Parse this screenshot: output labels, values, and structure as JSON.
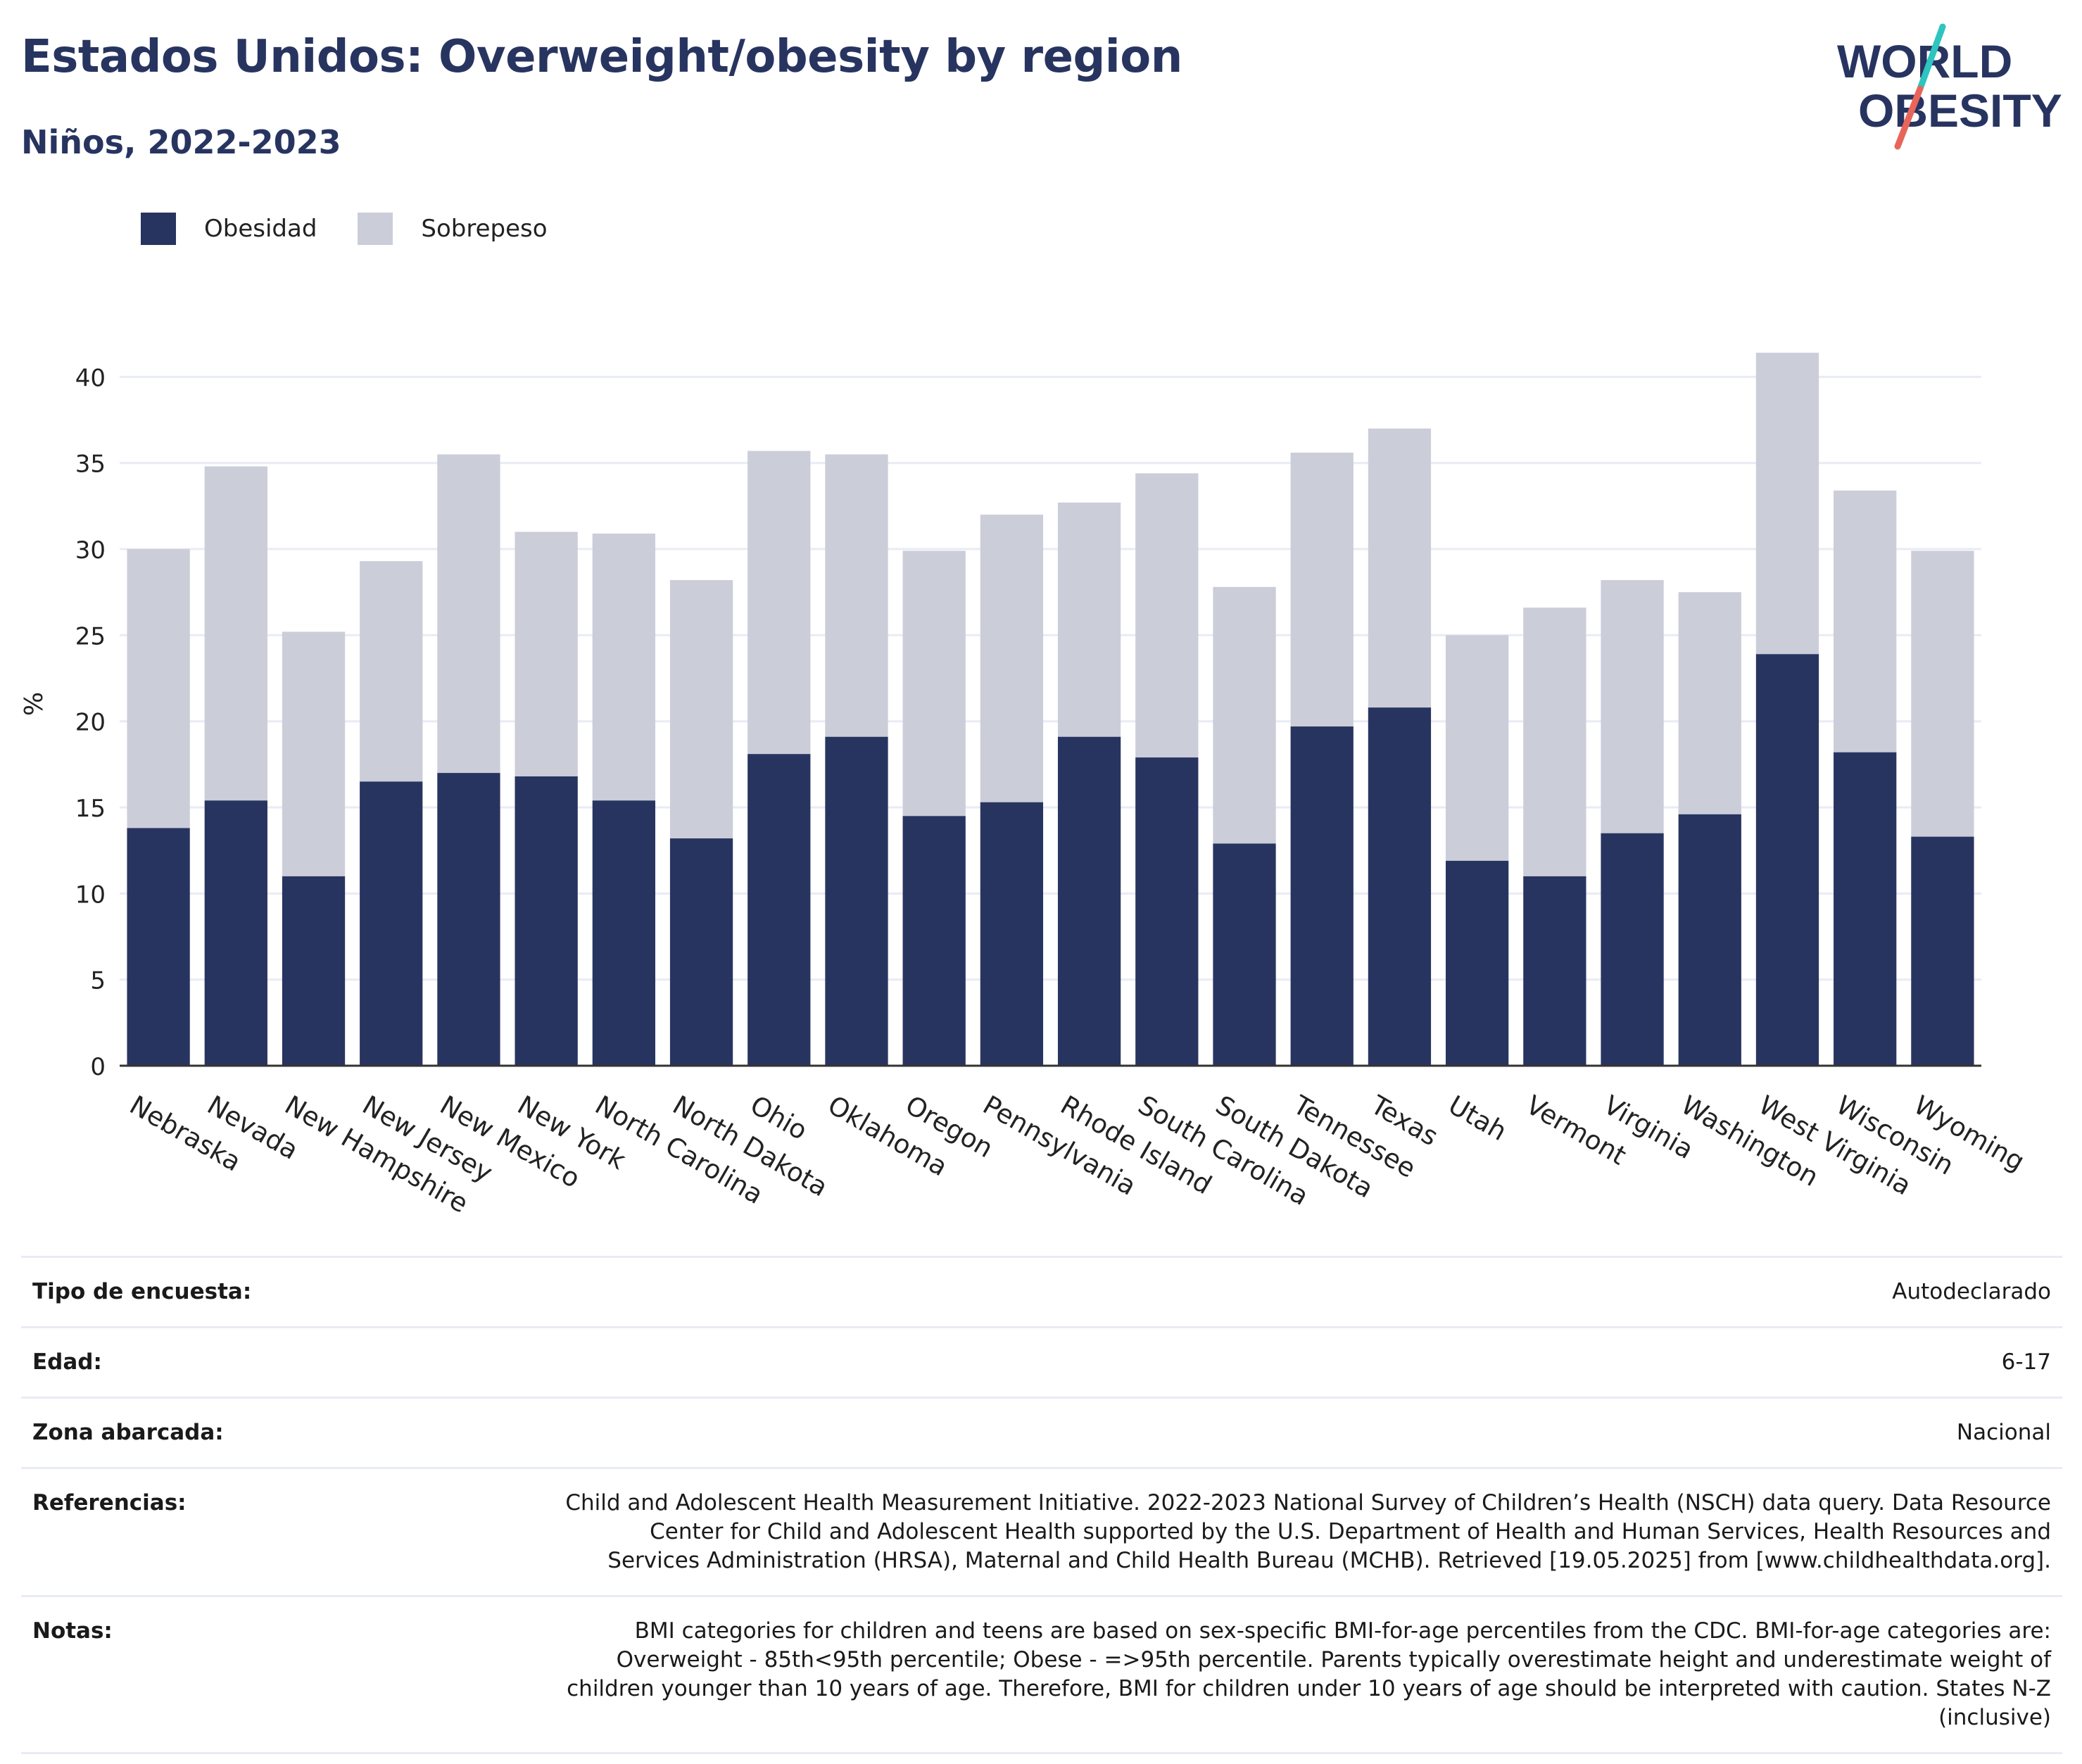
{
  "title": "Estados Unidos: Overweight/obesity by region",
  "subtitle": "Niños, 2022-2023",
  "logo": {
    "line1": "WORLD",
    "line2": "OBESITY"
  },
  "colors": {
    "obesity": "#283460",
    "overweight": "#cbcdd9",
    "text": "#283460",
    "grid": "#e9ebf5"
  },
  "legend": [
    {
      "label": "Obesidad",
      "color": "#283460"
    },
    {
      "label": "Sobrepeso",
      "color": "#cbcdd9"
    }
  ],
  "chart_data": {
    "type": "bar",
    "stacked": true,
    "categories": [
      "Nebraska",
      "Nevada",
      "New Hampshire",
      "New Jersey",
      "New Mexico",
      "New York",
      "North Carolina",
      "North Dakota",
      "Ohio",
      "Oklahoma",
      "Oregon",
      "Pennsylvania",
      "Rhode Island",
      "South Carolina",
      "South Dakota",
      "Tennessee",
      "Texas",
      "Utah",
      "Vermont",
      "Virginia",
      "Washington",
      "West Virginia",
      "Wisconsin",
      "Wyoming"
    ],
    "series": [
      {
        "name": "Obesidad",
        "values": [
          13.8,
          15.4,
          11.0,
          16.5,
          17.0,
          16.8,
          15.4,
          13.2,
          18.1,
          19.1,
          14.5,
          15.3,
          19.1,
          17.9,
          12.9,
          19.7,
          20.8,
          11.9,
          11.0,
          13.5,
          14.6,
          23.9,
          18.2,
          13.3
        ]
      },
      {
        "name": "Sobrepeso",
        "values": [
          16.2,
          19.4,
          14.2,
          12.8,
          18.5,
          14.2,
          15.5,
          15.0,
          17.6,
          16.4,
          15.4,
          16.7,
          13.6,
          16.5,
          14.9,
          15.9,
          16.2,
          13.1,
          15.6,
          14.7,
          12.9,
          17.5,
          15.2,
          16.6
        ]
      }
    ],
    "ylabel": "%",
    "xlabel": "",
    "ylim": [
      0,
      43
    ],
    "yticks": [
      0,
      5,
      10,
      15,
      20,
      25,
      30,
      35,
      40
    ],
    "grid": true,
    "legend_position": "top-left"
  },
  "meta": [
    {
      "key": "Tipo de encuesta:",
      "value": "Autodeclarado"
    },
    {
      "key": "Edad:",
      "value": "6-17"
    },
    {
      "key": "Zona abarcada:",
      "value": "Nacional"
    },
    {
      "key": "Referencias:",
      "value": "Child and Adolescent Health Measurement Initiative. 2022-2023 National Survey of Children’s Health (NSCH) data query. Data Resource Center for Child and Adolescent Health supported by the U.S. Department of Health and Human Services, Health Resources and Services Administration (HRSA), Maternal and Child Health Bureau (MCHB). Retrieved [19.05.2025] from [www.childhealthdata.org]."
    },
    {
      "key": "Notas:",
      "value": "BMI categories for children and teens are based on sex-specific BMI-for-age percentiles from the CDC. BMI-for-age categories are: Overweight - 85th<95th percentile; Obese - =>95th percentile. Parents typically overestimate height and underestimate weight of children younger than 10 years of age. Therefore, BMI for children under 10 years of age should be interpreted with caution. States N-Z (inclusive)"
    }
  ]
}
